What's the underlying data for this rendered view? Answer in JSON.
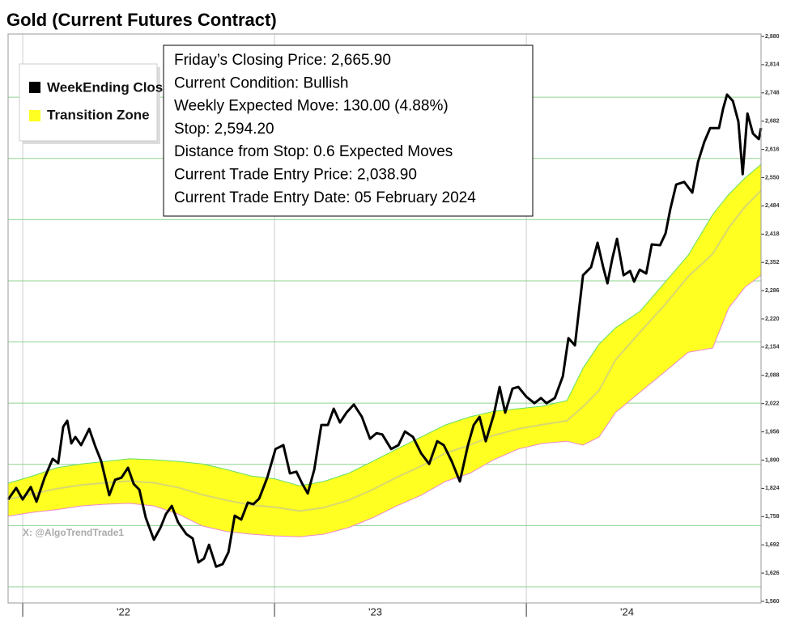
{
  "chart_data": {
    "type": "line",
    "title": "Gold (Current Futures Contract)",
    "annotations": [
      "Friday’s Closing Price: 2,665.90",
      "Current Condition: Bullish",
      "Weekly Expected Move: 130.00 (4.88%)",
      "Stop: 2,594.20",
      "Distance from Stop: 0.6 Expected Moves",
      "Current Trade Entry Price: 2,038.90",
      "Current Trade Entry Date: 05 February 2024"
    ],
    "watermark": "X: @AlgoTrendTrade1",
    "xlim": [
      2021.942,
      2024.932
    ],
    "xticks": [
      {
        "value": 2022.4,
        "label": "'22"
      },
      {
        "value": 2023.4,
        "label": "'23"
      },
      {
        "value": 2024.4,
        "label": "'24"
      }
    ],
    "xgrid": [
      2022,
      2023,
      2024
    ],
    "ylim": [
      1560,
      2880
    ],
    "yticks": [
      {
        "value": 1560,
        "label": "1,560"
      },
      {
        "value": 1626,
        "label": "1,626"
      },
      {
        "value": 1692,
        "label": "1,692"
      },
      {
        "value": 1758,
        "label": "1,758"
      },
      {
        "value": 1824,
        "label": "1,824"
      },
      {
        "value": 1890,
        "label": "1,890"
      },
      {
        "value": 1956,
        "label": "1,956"
      },
      {
        "value": 2022,
        "label": "2,022"
      },
      {
        "value": 2088,
        "label": "2,088"
      },
      {
        "value": 2154,
        "label": "2,154"
      },
      {
        "value": 2220,
        "label": "2,220"
      },
      {
        "value": 2286,
        "label": "2,286"
      },
      {
        "value": 2352,
        "label": "2,352"
      },
      {
        "value": 2418,
        "label": "2,418"
      },
      {
        "value": 2484,
        "label": "2,484"
      },
      {
        "value": 2550,
        "label": "2,550"
      },
      {
        "value": 2616,
        "label": "2,616"
      },
      {
        "value": 2682,
        "label": "2,682"
      },
      {
        "value": 2748,
        "label": "2,748"
      },
      {
        "value": 2814,
        "label": "2,814"
      },
      {
        "value": 2880,
        "label": "2,880"
      }
    ],
    "ygrid": [
      1594,
      1737,
      1880,
      2023,
      2166,
      2309,
      2452,
      2595,
      2738
    ],
    "grid_color": "#8fd48f",
    "series": [
      {
        "name": "WeekEnding Close",
        "color": "#000000",
        "x": [
          2021.942,
          2021.974,
          2022.0,
          2022.032,
          2022.055,
          2022.087,
          2022.119,
          2022.141,
          2022.161,
          2022.177,
          2022.193,
          2022.209,
          2022.232,
          2022.264,
          2022.289,
          2022.312,
          2022.344,
          2022.367,
          2022.392,
          2022.418,
          2022.441,
          2022.463,
          2022.489,
          2022.521,
          2022.547,
          2022.569,
          2022.592,
          2022.617,
          2022.65,
          2022.675,
          2022.698,
          2022.72,
          2022.74,
          2022.768,
          2022.794,
          2022.817,
          2022.842,
          2022.868,
          2022.894,
          2022.916,
          2022.939,
          2022.971,
          2023.004,
          2023.035,
          2023.061,
          2023.087,
          2023.109,
          2023.132,
          2023.158,
          2023.186,
          2023.212,
          2023.235,
          2023.26,
          2023.286,
          2023.315,
          2023.347,
          2023.379,
          2023.405,
          2023.428,
          2023.463,
          2023.492,
          2023.518,
          2023.55,
          2023.582,
          2023.614,
          2023.646,
          2023.672,
          2023.704,
          2023.736,
          2023.768,
          2023.791,
          2023.814,
          2023.839,
          2023.871,
          2023.894,
          2023.916,
          2023.945,
          2023.968,
          2024.0,
          2024.032,
          2024.058,
          2024.08,
          2024.113,
          2024.145,
          2024.167,
          2024.193,
          2024.225,
          2024.257,
          2024.283,
          2024.305,
          2024.322,
          2024.341,
          2024.36,
          2024.386,
          2024.412,
          2024.428,
          2024.45,
          2024.476,
          2024.498,
          2024.531,
          2024.553,
          2024.572,
          2024.595,
          2024.627,
          2024.659,
          2024.682,
          2024.707,
          2024.73,
          2024.765,
          2024.781,
          2024.797,
          2024.82,
          2024.842,
          2024.859,
          2024.878,
          2024.9,
          2024.923,
          2024.932
        ],
        "values": [
          1798,
          1825,
          1798,
          1827,
          1793,
          1849,
          1893,
          1883,
          1968,
          1982,
          1929,
          1944,
          1925,
          1963,
          1921,
          1887,
          1808,
          1844,
          1849,
          1872,
          1834,
          1821,
          1755,
          1704,
          1732,
          1764,
          1783,
          1745,
          1717,
          1707,
          1651,
          1660,
          1692,
          1641,
          1647,
          1675,
          1760,
          1751,
          1791,
          1787,
          1800,
          1849,
          1916,
          1925,
          1859,
          1863,
          1836,
          1812,
          1868,
          1972,
          1972,
          2010,
          1978,
          2001,
          2020,
          1991,
          1940,
          1953,
          1950,
          1916,
          1925,
          1957,
          1944,
          1906,
          1881,
          1934,
          1925,
          1887,
          1840,
          1925,
          1972,
          1991,
          1934,
          1997,
          2061,
          2001,
          2057,
          2061,
          2038,
          2023,
          2035,
          2023,
          2035,
          2086,
          2175,
          2158,
          2322,
          2341,
          2398,
          2341,
          2303,
          2360,
          2407,
          2322,
          2332,
          2307,
          2335,
          2326,
          2394,
          2392,
          2420,
          2477,
          2534,
          2540,
          2515,
          2587,
          2634,
          2666,
          2666,
          2710,
          2744,
          2729,
          2681,
          2558,
          2700,
          2653,
          2640,
          2666
        ]
      }
    ],
    "band": {
      "name": "Transition Zone",
      "color": "#ffff22",
      "upper_color": "#66dd66",
      "lower_color": "#ee88cc",
      "middle_color": "#d8d870",
      "x": [
        2021.942,
        2022.039,
        2022.135,
        2022.232,
        2022.328,
        2022.424,
        2022.521,
        2022.617,
        2022.714,
        2022.81,
        2022.907,
        2023.003,
        2023.1,
        2023.196,
        2023.293,
        2023.389,
        2023.486,
        2023.582,
        2023.678,
        2023.775,
        2023.871,
        2023.968,
        2024.064,
        2024.161,
        2024.225,
        2024.289,
        2024.354,
        2024.45,
        2024.547,
        2024.643,
        2024.74,
        2024.804,
        2024.868,
        2024.932
      ],
      "upper": [
        1836,
        1853,
        1872,
        1881,
        1887,
        1893,
        1891,
        1887,
        1881,
        1868,
        1853,
        1846,
        1830,
        1840,
        1859,
        1887,
        1916,
        1944,
        1972,
        1991,
        2004,
        2010,
        2016,
        2029,
        2105,
        2161,
        2199,
        2237,
        2303,
        2369,
        2464,
        2511,
        2549,
        2581
      ],
      "lower": [
        1759,
        1768,
        1774,
        1783,
        1787,
        1789,
        1783,
        1764,
        1736,
        1723,
        1717,
        1713,
        1711,
        1717,
        1732,
        1755,
        1783,
        1808,
        1840,
        1859,
        1891,
        1916,
        1929,
        1934,
        1925,
        1944,
        2001,
        2048,
        2095,
        2142,
        2152,
        2246,
        2294,
        2322
      ],
      "middle": [
        1798,
        1811,
        1823,
        1832,
        1837,
        1841,
        1837,
        1826,
        1809,
        1796,
        1785,
        1780,
        1771,
        1779,
        1796,
        1821,
        1850,
        1876,
        1906,
        1925,
        1948,
        1963,
        1973,
        1982,
        2015,
        2053,
        2124,
        2188,
        2251,
        2319,
        2372,
        2433,
        2482,
        2520
      ]
    }
  }
}
